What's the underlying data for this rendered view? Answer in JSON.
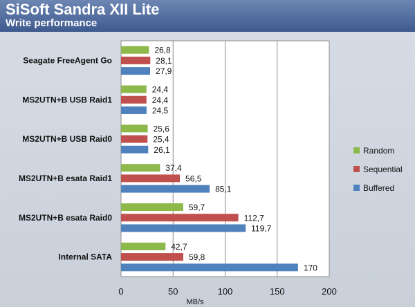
{
  "header": {
    "title": "SiSoft Sandra XII Lite",
    "subtitle": "Write performance"
  },
  "chart_data": {
    "type": "bar",
    "orientation": "horizontal",
    "title": "SiSoft Sandra XII Lite",
    "subtitle": "Write performance",
    "xlabel": "MB/s",
    "ylabel": "",
    "xlim": [
      0,
      200
    ],
    "ticks": [
      0,
      50,
      100,
      150,
      200
    ],
    "grid": true,
    "legend_position": "right",
    "categories": [
      "Seagate FreeAgent Go",
      "MS2UTN+B USB Raid1",
      "MS2UTN+B USB Raid0",
      "MS2UTN+B esata Raid1",
      "MS2UTN+B esata Raid0",
      "Internal SATA"
    ],
    "series": [
      {
        "name": "Random",
        "color": "#8db84a",
        "values": [
          26.8,
          24.4,
          25.6,
          37.4,
          59.7,
          42.7
        ],
        "labels": [
          "26,8",
          "24,4",
          "25,6",
          "37,4",
          "59,7",
          "42,7"
        ]
      },
      {
        "name": "Sequential",
        "color": "#c0504d",
        "values": [
          28.1,
          24.4,
          25.4,
          56.5,
          112.7,
          59.8
        ],
        "labels": [
          "28,1",
          "24,4",
          "25,4",
          "56,5",
          "112,7",
          "59,8"
        ]
      },
      {
        "name": "Buffered",
        "color": "#4f81bd",
        "values": [
          27.9,
          24.5,
          26.1,
          85.1,
          119.7,
          170
        ],
        "labels": [
          "27,9",
          "24,5",
          "26,1",
          "85,1",
          "119,7",
          "170"
        ]
      }
    ]
  }
}
